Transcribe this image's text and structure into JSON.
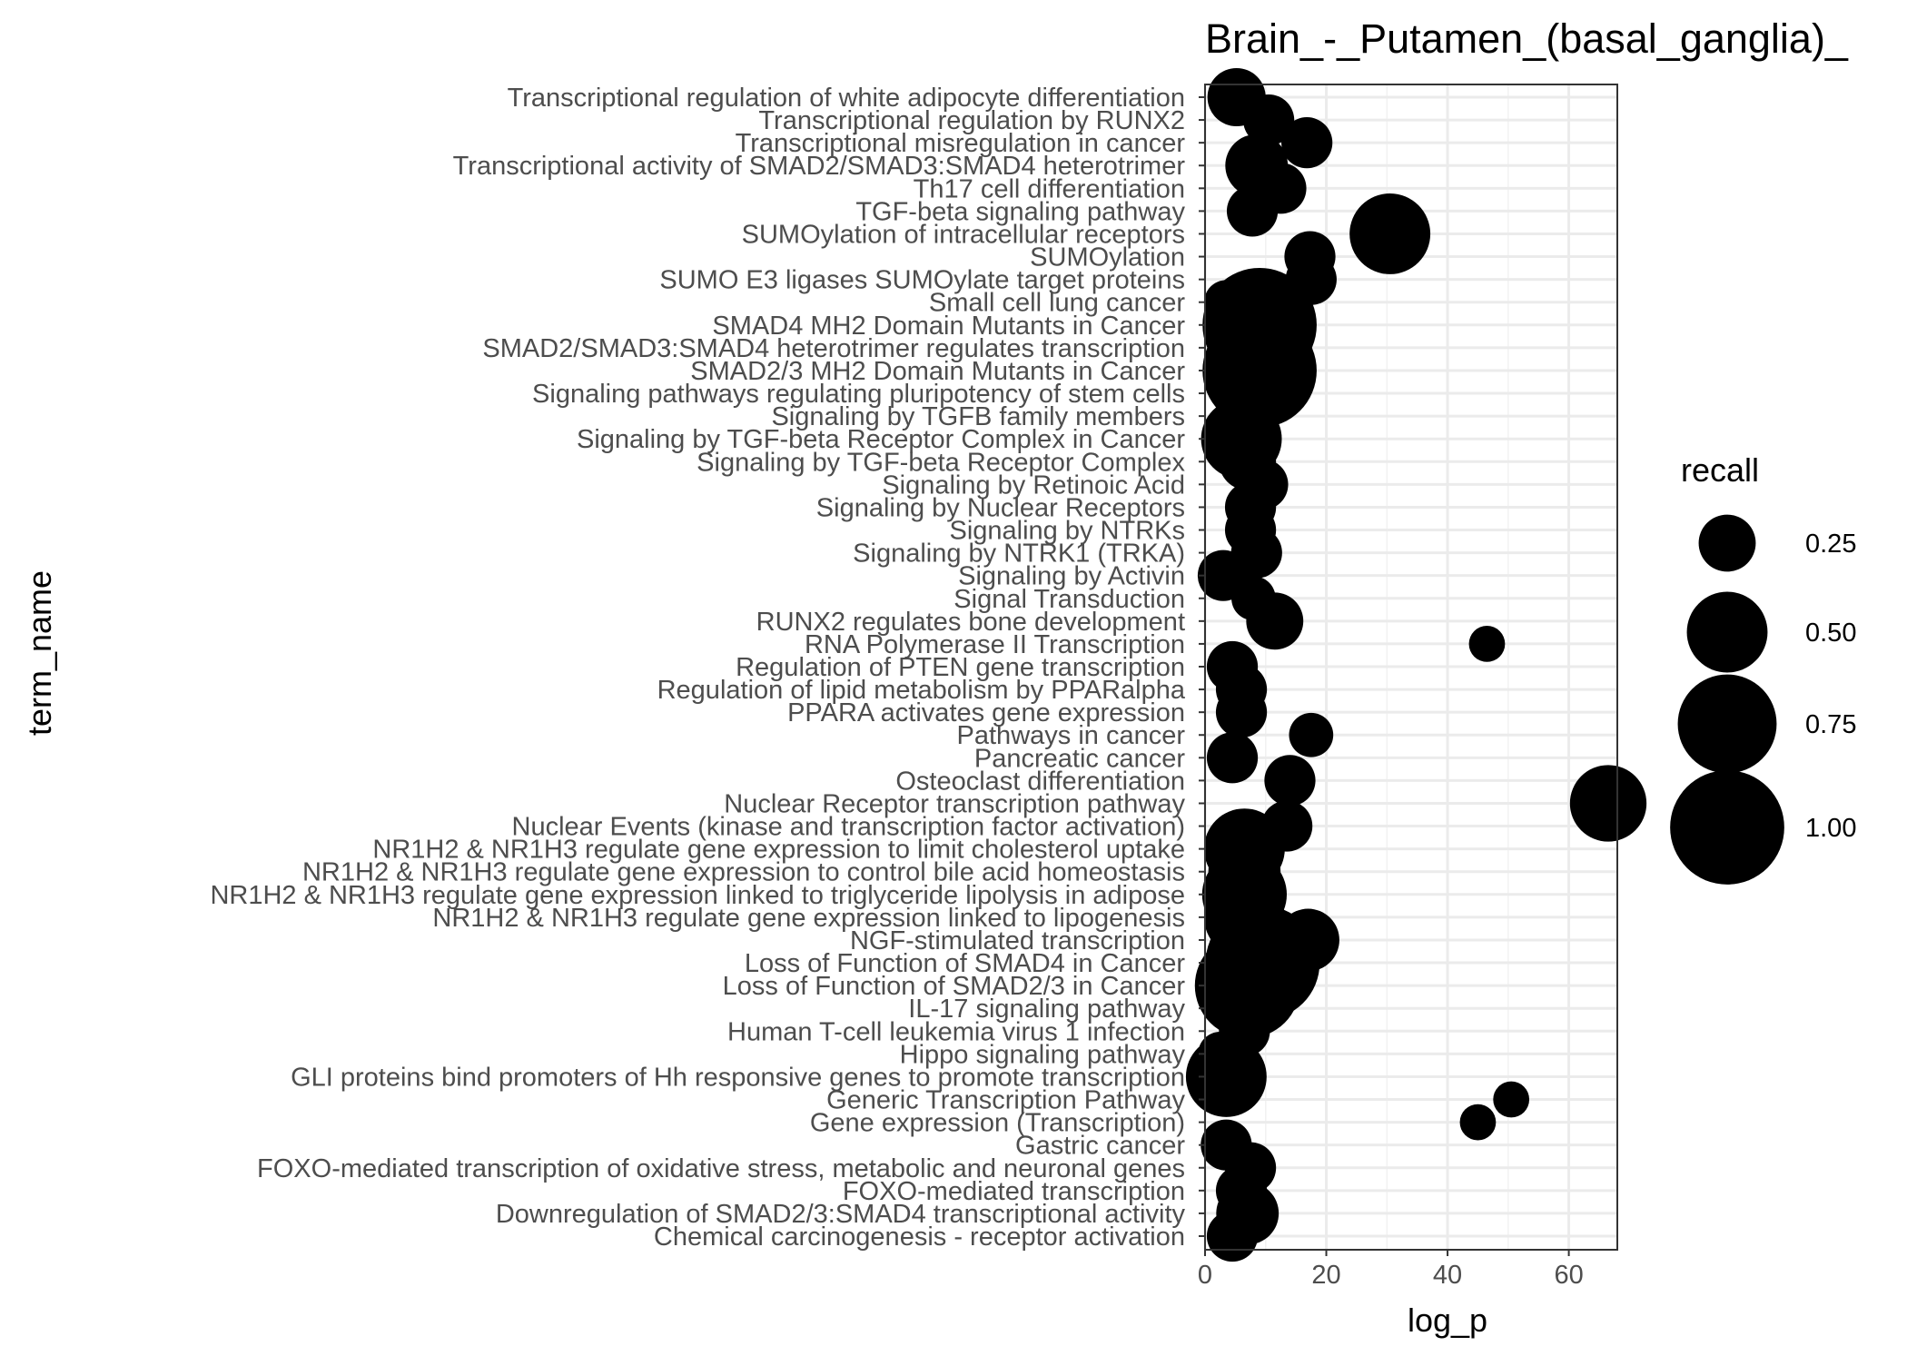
{
  "chart_data": {
    "type": "scatter",
    "title": "Brain_-_Putamen_(basal_ganglia)_",
    "xlabel": "log_p",
    "ylabel": "term_name",
    "xlim": [
      0,
      68
    ],
    "x_ticks": [
      0,
      20,
      40,
      60
    ],
    "x_tick_labels": [
      "0",
      "20",
      "40",
      "60"
    ],
    "grid": true,
    "theme": "bw",
    "point_color": "#000000",
    "legend": {
      "title": "recall",
      "position": "right",
      "breaks": [
        0.25,
        0.5,
        0.75,
        1.0
      ],
      "labels": [
        "0.25",
        "0.50",
        "0.75",
        "1.00"
      ]
    },
    "points": [
      {
        "term": "Transcriptional regulation of white adipocyte differentiation",
        "log_p": 5.2,
        "recall": 0.26
      },
      {
        "term": "Transcriptional regulation by RUNX2",
        "log_p": 10.5,
        "recall": 0.2
      },
      {
        "term": "Transcriptional misregulation in cancer",
        "log_p": 16.8,
        "recall": 0.2
      },
      {
        "term": "Transcriptional activity of SMAD2/SMAD3:SMAD4 heterotrimer",
        "log_p": 8.5,
        "recall": 0.3
      },
      {
        "term": "Th17 cell differentiation",
        "log_p": 12.5,
        "recall": 0.2
      },
      {
        "term": "TGF-beta signaling pathway",
        "log_p": 7.8,
        "recall": 0.2
      },
      {
        "term": "SUMOylation of intracellular receptors",
        "log_p": 30.5,
        "recall": 0.5
      },
      {
        "term": "SUMOylation",
        "log_p": 17.3,
        "recall": 0.2
      },
      {
        "term": "SUMO E3 ligases SUMOylate target proteins",
        "log_p": 17.5,
        "recall": 0.2
      },
      {
        "term": "Small cell lung cancer",
        "log_p": 3.5,
        "recall": 0.15
      },
      {
        "term": "SMAD4 MH2 Domain Mutants in Cancer",
        "log_p": 9.0,
        "recall": 1.0
      },
      {
        "term": "SMAD2/SMAD3:SMAD4 heterotrimer regulates transcription",
        "log_p": 8.5,
        "recall": 0.35
      },
      {
        "term": "SMAD2/3 MH2 Domain Mutants in Cancer",
        "log_p": 9.0,
        "recall": 1.0
      },
      {
        "term": "Signaling pathways regulating pluripotency of stem cells",
        "log_p": 6.5,
        "recall": 0.2
      },
      {
        "term": "Signaling by TGFB family members",
        "log_p": 6.5,
        "recall": 0.2
      },
      {
        "term": "Signaling by TGF-beta Receptor Complex in Cancer",
        "log_p": 6.0,
        "recall": 0.5
      },
      {
        "term": "Signaling by TGF-beta Receptor Complex",
        "log_p": 7.0,
        "recall": 0.25
      },
      {
        "term": "Signaling by Retinoic Acid",
        "log_p": 9.5,
        "recall": 0.2
      },
      {
        "term": "Signaling by Nuclear Receptors",
        "log_p": 7.5,
        "recall": 0.2
      },
      {
        "term": "Signaling by NTRKs",
        "log_p": 7.5,
        "recall": 0.2
      },
      {
        "term": "Signaling by NTRK1 (TRKA)",
        "log_p": 8.5,
        "recall": 0.2
      },
      {
        "term": "Signaling by Activin",
        "log_p": 3.0,
        "recall": 0.2
      },
      {
        "term": "Signal Transduction",
        "log_p": 8.0,
        "recall": 0.15
      },
      {
        "term": "RUNX2 regulates bone development",
        "log_p": 11.5,
        "recall": 0.25
      },
      {
        "term": "RNA Polymerase II Transcription",
        "log_p": 46.5,
        "recall": 0.1
      },
      {
        "term": "Regulation of PTEN gene transcription",
        "log_p": 4.5,
        "recall": 0.2
      },
      {
        "term": "Regulation of lipid metabolism by PPARalpha",
        "log_p": 6.0,
        "recall": 0.2
      },
      {
        "term": "PPARA activates gene expression",
        "log_p": 6.0,
        "recall": 0.2
      },
      {
        "term": "Pathways in cancer",
        "log_p": 17.5,
        "recall": 0.15
      },
      {
        "term": "Pancreatic cancer",
        "log_p": 4.5,
        "recall": 0.2
      },
      {
        "term": "Osteoclast differentiation",
        "log_p": 14.0,
        "recall": 0.2
      },
      {
        "term": "Nuclear Receptor transcription pathway",
        "log_p": 66.5,
        "recall": 0.45
      },
      {
        "term": "Nuclear Events (kinase and transcription factor activation)",
        "log_p": 13.5,
        "recall": 0.2
      },
      {
        "term": "NR1H2 & NR1H3 regulate gene expression to limit cholesterol uptake",
        "log_p": 6.5,
        "recall": 0.5
      },
      {
        "term": "NR1H2 & NR1H3 regulate gene expression to control bile acid homeostasis",
        "log_p": 6.5,
        "recall": 0.4
      },
      {
        "term": "NR1H2 & NR1H3 regulate gene expression linked to triglyceride lipolysis in adipose",
        "log_p": 6.5,
        "recall": 0.55
      },
      {
        "term": "NR1H2 & NR1H3 regulate gene expression linked to lipogenesis",
        "log_p": 6.5,
        "recall": 0.5
      },
      {
        "term": "NGF-stimulated transcription",
        "log_p": 17.0,
        "recall": 0.3
      },
      {
        "term": "Loss of Function of SMAD4 in Cancer",
        "log_p": 9.5,
        "recall": 1.0
      },
      {
        "term": "Loss of Function of SMAD2/3 in Cancer",
        "log_p": 7.0,
        "recall": 0.85
      },
      {
        "term": "IL-17 signaling pathway",
        "log_p": 6.5,
        "recall": 0.2
      },
      {
        "term": "Human T-cell leukemia virus 1 infection",
        "log_p": 6.5,
        "recall": 0.2
      },
      {
        "term": "Hippo signaling pathway",
        "log_p": 2.5,
        "recall": 0.15
      },
      {
        "term": "GLI proteins bind promoters of Hh responsive genes to promote transcription",
        "log_p": 3.5,
        "recall": 0.5
      },
      {
        "term": "Generic Transcription Pathway",
        "log_p": 50.5,
        "recall": 0.1
      },
      {
        "term": "Gene expression (Transcription)",
        "log_p": 45.0,
        "recall": 0.1
      },
      {
        "term": "Gastric cancer",
        "log_p": 3.5,
        "recall": 0.2
      },
      {
        "term": "FOXO-mediated transcription of oxidative stress, metabolic and neuronal genes",
        "log_p": 7.5,
        "recall": 0.2
      },
      {
        "term": "FOXO-mediated transcription",
        "log_p": 6.0,
        "recall": 0.2
      },
      {
        "term": "Downregulation of SMAD2/3:SMAD4 transcriptional activity",
        "log_p": 7.0,
        "recall": 0.3
      },
      {
        "term": "Chemical carcinogenesis - receptor activation",
        "log_p": 4.5,
        "recall": 0.2
      }
    ]
  }
}
